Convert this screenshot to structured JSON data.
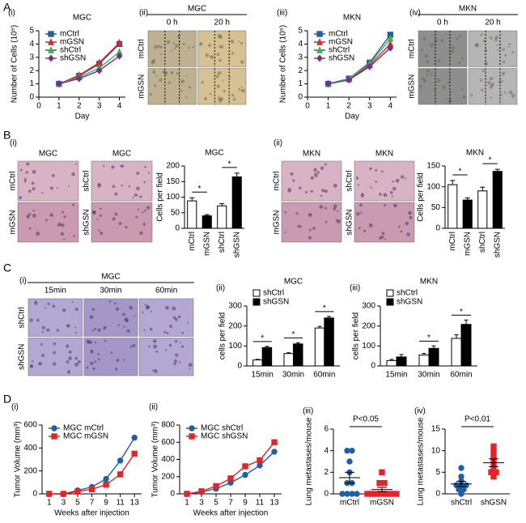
{
  "figure": {
    "panel_letters": [
      "A",
      "B",
      "C",
      "D"
    ],
    "images": [
      {
        "panel_label": "(ii)",
        "title": "MGC",
        "col_labels": [
          "0 h",
          "20 h"
        ],
        "row_labels": [
          "mCtrl",
          "mGSN"
        ]
      },
      {
        "panel_label": "(iv)",
        "title": "MKN",
        "col_labels": [
          "0 h",
          "20 h"
        ],
        "row_labels": [
          "mCtrl",
          "mGSN"
        ]
      },
      {
        "panel_label": "(i)",
        "columns": [
          {
            "title": "MGC",
            "row_labels": [
              "mCtrl",
              "mGSN"
            ]
          },
          {
            "title": "MGC",
            "row_labels": [
              "shCtrl",
              "shGSN"
            ]
          }
        ]
      },
      {
        "panel_label": "(ii)",
        "columns": [
          {
            "title": "MKN",
            "row_labels": [
              "mCtrl",
              "mGSN"
            ]
          },
          {
            "title": "MKN",
            "row_labels": [
              "shCtrl",
              "shGSN"
            ]
          }
        ]
      },
      {
        "panel_label": "(i)",
        "title": "MGC",
        "col_labels": [
          "15min",
          "30min",
          "60min"
        ],
        "row_labels": [
          "shCtrl",
          "shGSN"
        ]
      }
    ]
  },
  "chart_data": [
    {
      "type": "line",
      "panel_label": "(i)",
      "title": "MGC",
      "xlabel": "Day",
      "ylabel": "Number of Cells (10⁵)",
      "x": [
        1,
        2,
        3,
        4
      ],
      "xlim": [
        0,
        4.3
      ],
      "xticks": [
        0,
        1,
        2,
        3,
        4
      ],
      "ylim": [
        0,
        5
      ],
      "yticks": [
        0,
        1,
        2,
        3,
        4,
        5
      ],
      "legend": "upper left",
      "series": [
        {
          "name": "mCtrl",
          "color": "#1f5fa8",
          "marker": "square",
          "values": [
            1,
            1.6,
            2.5,
            4.0
          ]
        },
        {
          "name": "mGSN",
          "color": "#e3242b",
          "marker": "triangle",
          "values": [
            1,
            1.65,
            2.6,
            4.1
          ]
        },
        {
          "name": "shCtrl",
          "color": "#3cb44b",
          "marker": "triangle",
          "values": [
            1,
            1.5,
            2.2,
            3.4
          ]
        },
        {
          "name": "shGSN",
          "color": "#7b2d8e",
          "marker": "diamond",
          "values": [
            1,
            1.4,
            2.0,
            3.1
          ]
        }
      ]
    },
    {
      "type": "line",
      "panel_label": "(iii)",
      "title": "MKN",
      "xlabel": "Day",
      "ylabel": "Number of Cells (10⁵)",
      "x": [
        1,
        2,
        3,
        4
      ],
      "xlim": [
        0,
        4.3
      ],
      "xticks": [
        0,
        1,
        2,
        3,
        4
      ],
      "ylim": [
        0,
        5
      ],
      "yticks": [
        0,
        1,
        2,
        3,
        4,
        5
      ],
      "legend": "upper left",
      "series": [
        {
          "name": "mCtrl",
          "color": "#1f5fa8",
          "marker": "square",
          "values": [
            1,
            1.4,
            2.6,
            4.7
          ]
        },
        {
          "name": "mGSN",
          "color": "#e3242b",
          "marker": "triangle",
          "values": [
            1,
            1.35,
            2.4,
            4.0
          ]
        },
        {
          "name": "shCtrl",
          "color": "#3cb44b",
          "marker": "triangle",
          "values": [
            1,
            1.4,
            2.5,
            4.4
          ]
        },
        {
          "name": "shGSN",
          "color": "#7b2d8e",
          "marker": "diamond",
          "values": [
            1,
            1.3,
            2.3,
            3.7
          ]
        }
      ]
    },
    {
      "type": "bar",
      "title": "MGC",
      "ylabel": "Cells per field",
      "categories": [
        "mCtrl",
        "mGSN",
        "shCtrl",
        "shGSN"
      ],
      "values": [
        88,
        40,
        72,
        165
      ],
      "errors": [
        10,
        4,
        7,
        12
      ],
      "colors": [
        "#ffffff",
        "#000000",
        "#ffffff",
        "#000000"
      ],
      "ylim": [
        0,
        200
      ],
      "yticks": [
        0,
        50,
        100,
        150,
        200
      ],
      "significance": [
        "*",
        "*"
      ]
    },
    {
      "type": "bar",
      "title": "MKN",
      "ylabel": "Cells per field",
      "categories": [
        "mCtrl",
        "mGSN",
        "shCtrl",
        "shGSN"
      ],
      "values": [
        105,
        68,
        90,
        137
      ],
      "errors": [
        10,
        5,
        9,
        5
      ],
      "colors": [
        "#ffffff",
        "#000000",
        "#ffffff",
        "#000000"
      ],
      "ylim": [
        0,
        150
      ],
      "yticks": [
        0,
        50,
        100,
        150
      ],
      "significance": [
        "*",
        "*"
      ]
    },
    {
      "type": "grouped_bar",
      "panel_label": "(ii)",
      "title": "MGC",
      "ylabel": "cells per field",
      "categories": [
        "15min",
        "30min",
        "60min"
      ],
      "ylim": [
        0,
        300
      ],
      "yticks": [
        0,
        100,
        200,
        300
      ],
      "legend": "upper left",
      "significance": [
        "*",
        "*",
        "*"
      ],
      "series": [
        {
          "name": "shCtrl",
          "color": "#ffffff",
          "values": [
            30,
            62,
            190
          ],
          "errors": [
            3,
            4,
            8
          ]
        },
        {
          "name": "shGSN",
          "color": "#000000",
          "values": [
            92,
            110,
            240
          ],
          "errors": [
            6,
            6,
            8
          ]
        }
      ]
    },
    {
      "type": "grouped_bar",
      "panel_label": "(iii)",
      "title": "MKN",
      "ylabel": "cells per field",
      "categories": [
        "15min",
        "30min",
        "60min"
      ],
      "ylim": [
        0,
        300
      ],
      "yticks": [
        0,
        100,
        200,
        300
      ],
      "legend": "upper left",
      "significance": [
        "*",
        "*"
      ],
      "series": [
        {
          "name": "shCtrl",
          "color": "#ffffff",
          "values": [
            27,
            55,
            138
          ],
          "errors": [
            6,
            8,
            18
          ]
        },
        {
          "name": "shGSN",
          "color": "#000000",
          "values": [
            45,
            88,
            208
          ],
          "errors": [
            12,
            12,
            22
          ]
        }
      ]
    },
    {
      "type": "line",
      "panel_label": "(i)",
      "xlabel": "Weeks after injection",
      "ylabel": "Tumor Volume (mm³)",
      "x": [
        1,
        3,
        5,
        7,
        9,
        11,
        13
      ],
      "xlim": [
        0,
        14
      ],
      "xticks": [
        1,
        3,
        5,
        7,
        9,
        11,
        13
      ],
      "ylim": [
        0,
        600
      ],
      "yticks": [
        0,
        200,
        400,
        600
      ],
      "legend": "upper left",
      "series": [
        {
          "name": "MGC mCtrl",
          "color": "#1f5fa8",
          "marker": "circle",
          "values": [
            0,
            0,
            30,
            60,
            130,
            290,
            490
          ]
        },
        {
          "name": "MGC mGSN",
          "color": "#e3242b",
          "marker": "square",
          "values": [
            0,
            0,
            20,
            40,
            80,
            170,
            350
          ]
        }
      ]
    },
    {
      "type": "line",
      "panel_label": "(ii)",
      "xlabel": "Weeks after injection",
      "ylabel": "Tumor Volume (mm³)",
      "x": [
        1,
        3,
        5,
        7,
        9,
        11,
        13
      ],
      "xlim": [
        0,
        14
      ],
      "xticks": [
        1,
        3,
        5,
        7,
        9,
        11,
        13
      ],
      "ylim": [
        0,
        800
      ],
      "yticks": [
        0,
        200,
        400,
        600,
        800
      ],
      "legend": "upper left",
      "series": [
        {
          "name": "MGC shCtrl",
          "color": "#1f5fa8",
          "marker": "circle",
          "values": [
            0,
            20,
            60,
            130,
            220,
            330,
            490
          ]
        },
        {
          "name": "MGC shGSN",
          "color": "#e3242b",
          "marker": "square",
          "values": [
            0,
            30,
            90,
            180,
            320,
            390,
            600
          ]
        }
      ]
    },
    {
      "type": "strip",
      "panel_label": "(iii)",
      "ylabel": "Lung metastases/mouse",
      "annotation": "P<0.05",
      "categories": [
        "mCtrl",
        "mGSN"
      ],
      "ylim": [
        0,
        6
      ],
      "yticks": [
        0,
        2,
        4,
        6
      ],
      "colors": [
        "#1f5fa8",
        "#e3242b"
      ],
      "markers": [
        "circle",
        "square"
      ],
      "points": [
        [
          0,
          0,
          0,
          0,
          1,
          1,
          2,
          3,
          4,
          4
        ],
        [
          0,
          0,
          0,
          0,
          0,
          0,
          0,
          1,
          1,
          2
        ]
      ],
      "means": [
        1.5,
        0.4
      ],
      "sems": [
        0.5,
        0.2
      ]
    },
    {
      "type": "strip",
      "panel_label": "(iv)",
      "ylabel": "Lung metastases/mouse",
      "annotation": "P<0.01",
      "categories": [
        "shCtrl",
        "shGSN"
      ],
      "ylim": [
        0,
        15
      ],
      "yticks": [
        0,
        5,
        10,
        15
      ],
      "colors": [
        "#1f5fa8",
        "#e3242b"
      ],
      "markers": [
        "circle",
        "square"
      ],
      "points": [
        [
          0,
          1,
          1,
          2,
          2,
          2,
          3,
          4,
          6
        ],
        [
          4,
          5,
          5,
          6,
          7,
          8,
          9,
          10,
          11
        ]
      ],
      "means": [
        2.3,
        7.2
      ],
      "sems": [
        0.6,
        0.9
      ]
    }
  ]
}
